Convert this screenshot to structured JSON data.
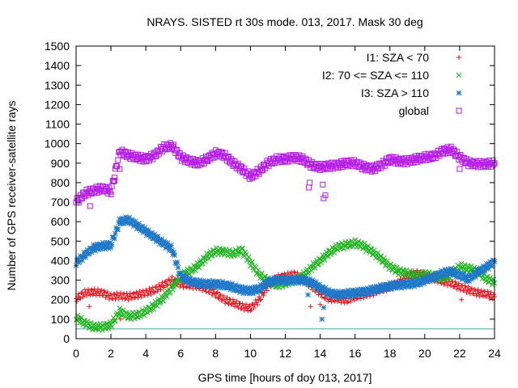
{
  "chart_data": {
    "type": "scatter",
    "title": "NRAYS. SISTED rt 30s mode. 013, 2017. Mask 30 deg",
    "xlabel": "GPS time [hours of doy 013, 2017]",
    "ylabel": "Number of GPS receiver-satellite rays",
    "xlim": [
      0,
      24
    ],
    "ylim": [
      0,
      1500
    ],
    "xticks": [
      "0",
      "2",
      "4",
      "6",
      "8",
      "10",
      "12",
      "14",
      "16",
      "18",
      "20",
      "22",
      "24"
    ],
    "yticks": [
      "0",
      "100",
      "200",
      "300",
      "400",
      "500",
      "600",
      "700",
      "800",
      "900",
      "1000",
      "1100",
      "1200",
      "1300",
      "1400",
      "1500"
    ],
    "legend_position": "top-right",
    "baseline_value": 50,
    "baseline_color": "#40a8a8",
    "series": [
      {
        "name": "I1: SZA < 70",
        "marker": "+",
        "color": "#e8141c",
        "x": [
          0,
          0.5,
          1,
          1.5,
          2,
          2.5,
          3,
          3.5,
          4,
          4.5,
          5,
          5.5,
          6,
          6.5,
          7,
          7.5,
          8,
          8.5,
          9,
          9.5,
          10,
          10.5,
          11,
          11.5,
          12,
          12.5,
          13,
          13.5,
          14,
          14.5,
          15,
          15.5,
          16,
          16.5,
          17,
          17.5,
          18,
          18.5,
          19,
          19.5,
          20,
          20.5,
          21,
          21.5,
          22,
          22.5,
          23,
          23.5,
          24
        ],
        "y": [
          205,
          235,
          240,
          235,
          215,
          220,
          215,
          225,
          235,
          250,
          275,
          300,
          280,
          275,
          270,
          255,
          230,
          200,
          185,
          165,
          155,
          200,
          270,
          310,
          320,
          330,
          310,
          270,
          235,
          205,
          205,
          195,
          215,
          225,
          235,
          255,
          265,
          285,
          320,
          335,
          325,
          310,
          295,
          285,
          265,
          250,
          235,
          230,
          215
        ]
      },
      {
        "name": "I2: 70 <= SZA <= 110",
        "marker": "x",
        "color": "#1eb41e",
        "x": [
          0,
          0.5,
          1,
          1.5,
          2,
          2.5,
          3,
          3.5,
          4,
          4.5,
          5,
          5.5,
          6,
          6.5,
          7,
          7.5,
          8,
          8.5,
          9,
          9.5,
          10,
          10.5,
          11,
          11.5,
          12,
          12.5,
          13,
          13.5,
          14,
          14.5,
          15,
          15.5,
          16,
          16.5,
          17,
          17.5,
          18,
          18.5,
          19,
          19.5,
          20,
          20.5,
          21,
          21.5,
          22,
          22.5,
          23,
          23.5,
          24
        ],
        "y": [
          110,
          80,
          60,
          60,
          70,
          140,
          115,
          120,
          140,
          170,
          210,
          260,
          320,
          345,
          375,
          420,
          450,
          445,
          435,
          455,
          390,
          330,
          295,
          275,
          285,
          300,
          320,
          365,
          400,
          440,
          470,
          480,
          490,
          475,
          445,
          410,
          370,
          345,
          335,
          325,
          330,
          320,
          310,
          330,
          370,
          360,
          345,
          310,
          285
        ]
      },
      {
        "name": "I3: SZA > 110",
        "marker": "*",
        "color": "#1e78c8",
        "x": [
          0,
          0.5,
          1,
          1.5,
          2,
          2.5,
          3,
          3.5,
          4,
          4.5,
          5,
          5.5,
          6,
          6.5,
          7,
          7.5,
          8,
          8.5,
          9,
          9.5,
          10,
          10.5,
          11,
          11.5,
          12,
          12.5,
          13,
          13.5,
          14,
          14.5,
          15,
          15.5,
          16,
          16.5,
          17,
          17.5,
          18,
          18.5,
          19,
          19.5,
          20,
          20.5,
          21,
          21.5,
          22,
          22.5,
          23,
          23.5,
          24
        ],
        "y": [
          390,
          430,
          465,
          475,
          480,
          600,
          610,
          580,
          550,
          520,
          490,
          460,
          320,
          295,
          285,
          280,
          280,
          275,
          265,
          250,
          245,
          255,
          290,
          300,
          300,
          300,
          300,
          290,
          260,
          235,
          225,
          230,
          235,
          240,
          250,
          260,
          270,
          275,
          280,
          285,
          300,
          315,
          335,
          345,
          325,
          305,
          340,
          365,
          395
        ]
      },
      {
        "name": "global",
        "marker": "square",
        "color": "#b41ee6",
        "x": [
          0,
          0.5,
          1,
          1.5,
          2,
          2.5,
          3,
          3.5,
          4,
          4.5,
          5,
          5.5,
          6,
          6.5,
          7,
          7.5,
          8,
          8.5,
          9,
          9.5,
          10,
          10.5,
          11,
          11.5,
          12,
          12.5,
          13,
          13.5,
          14,
          14.5,
          15,
          15.5,
          16,
          16.5,
          17,
          17.5,
          18,
          18.5,
          19,
          19.5,
          20,
          20.5,
          21,
          21.5,
          22,
          22.5,
          23,
          23.5,
          24
        ],
        "y": [
          700,
          745,
          760,
          770,
          755,
          960,
          940,
          930,
          920,
          940,
          980,
          990,
          930,
          910,
          900,
          920,
          950,
          940,
          900,
          870,
          830,
          860,
          900,
          920,
          920,
          930,
          920,
          890,
          880,
          885,
          890,
          900,
          900,
          880,
          870,
          890,
          920,
          910,
          910,
          920,
          930,
          935,
          960,
          970,
          930,
          900,
          895,
          895,
          900
        ]
      }
    ],
    "outliers": [
      {
        "series": "I1: SZA < 70",
        "x": [
          0.75,
          2.55,
          13.45,
          14.0,
          22.1
        ],
        "y": [
          165,
          100,
          165,
          175,
          200
        ]
      },
      {
        "series": "I3: SZA > 110",
        "x": [
          13.3,
          14.1,
          14.2
        ],
        "y": [
          225,
          100,
          160
        ]
      },
      {
        "series": "global",
        "x": [
          0.8,
          2.2,
          2.5,
          13.35,
          13.4,
          14.15,
          14.2,
          14.3,
          22.0
        ],
        "y": [
          680,
          810,
          870,
          775,
          800,
          790,
          720,
          735,
          870
        ]
      }
    ]
  }
}
